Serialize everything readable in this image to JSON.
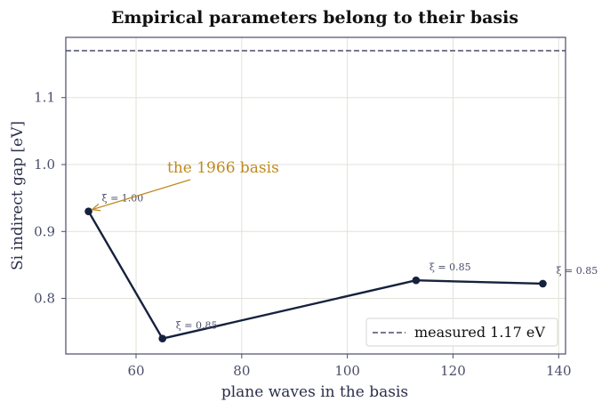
{
  "chart_data": {
    "type": "line",
    "title": "Empirical parameters belong to their basis",
    "xlabel": "plane waves in the basis",
    "ylabel": "Si indirect gap  [eV]",
    "xlim": [
      46.7,
      141.3
    ],
    "ylim": [
      0.717,
      1.19
    ],
    "xticks": [
      60,
      80,
      100,
      120,
      140
    ],
    "yticks": [
      0.8,
      0.9,
      1.0,
      1.1
    ],
    "xtick_labels": [
      "60",
      "80",
      "100",
      "120",
      "140"
    ],
    "ytick_labels": [
      "0.8",
      "0.9",
      "1.0",
      "1.1"
    ],
    "grid": true,
    "series": [
      {
        "values": [
          {
            "x": 51,
            "y": 0.93,
            "label": "ξ = 1.00"
          },
          {
            "x": 65,
            "y": 0.74,
            "label": "ξ = 0.85"
          },
          {
            "x": 113,
            "y": 0.827,
            "label": "ξ = 0.85"
          },
          {
            "x": 137,
            "y": 0.822,
            "label": "ξ = 0.85"
          }
        ]
      }
    ],
    "reference_line": {
      "y": 1.17,
      "name": "measured 1.17 eV"
    },
    "annotation": {
      "text": "the 1966 basis",
      "target": {
        "x": 51,
        "y": 0.93
      }
    },
    "legend": {
      "placement": "bottom-right"
    },
    "colors": {
      "series": "#16213d",
      "reference": "#4a4d6a",
      "annotation": "#c08a1e",
      "grid": "#e2e2d8",
      "frame": "#4a4d6a"
    }
  }
}
